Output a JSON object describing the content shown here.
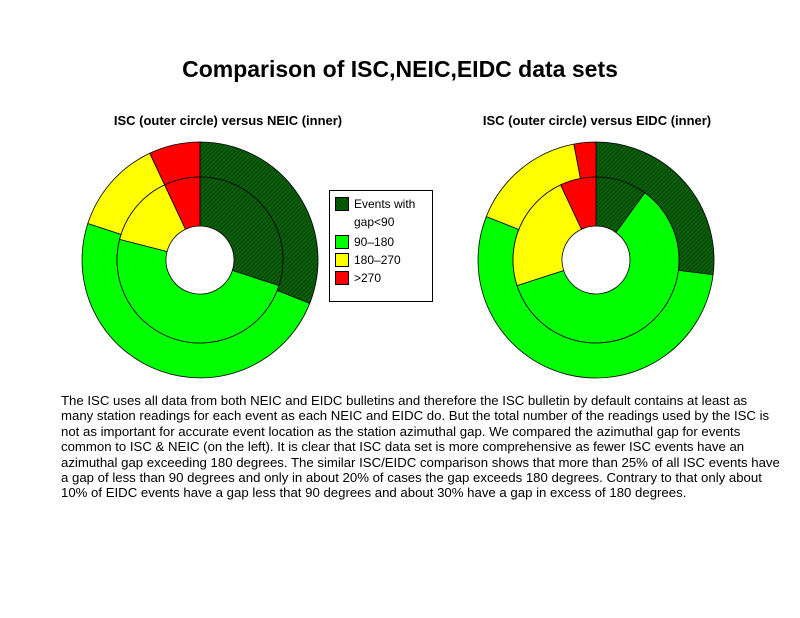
{
  "page": {
    "title": "Comparison of ISC,NEIC,EIDC data sets",
    "body_text": "The ISC uses all data from both NEIC and EIDC bulletins and therefore the ISC bulletin by default contains at least as many station readings for each event as each NEIC and EIDC do. But the total number of the readings used by the ISC is not as important for accurate event location as the station azimuthal gap. We compared the azimuthal gap for events common to ISC & NEIC (on the left).  It is clear that ISC data set is more comprehensive as fewer ISC events have an azimuthal gap exceeding 180 degrees. The similar ISC/EIDC comparison shows that more than 25% of all ISC events have a gap of less than 90 degrees and only in about 20% of cases the gap exceeds 180 degrees. Contrary to that only about 10% of EIDC events have a gap less that 90 degrees and about 30% have a gap in excess of 180 degrees."
  },
  "legend": {
    "items": [
      {
        "label": "Events with gap<90",
        "color": "#006400",
        "hatched": true
      },
      {
        "label": "90–180",
        "color": "#00ff00",
        "hatched": false
      },
      {
        "label": "180–270",
        "color": "#ffff00",
        "hatched": false
      },
      {
        "label": ">270",
        "color": "#ff0000",
        "hatched": false
      }
    ]
  },
  "chart_data": [
    {
      "type": "donut",
      "title": "ISC (outer circle) versus NEIC (inner)",
      "categories": [
        "gap<90",
        "90–180",
        "180–270",
        ">270"
      ],
      "start_angle_deg": 0,
      "direction": "clockwise",
      "series": [
        {
          "name": "ISC",
          "ring": "outer",
          "values": [
            31,
            49,
            13,
            7
          ]
        },
        {
          "name": "NEIC",
          "ring": "inner",
          "values": [
            30,
            49,
            14,
            7
          ]
        }
      ]
    },
    {
      "type": "donut",
      "title": "ISC (outer circle) versus EIDC (inner)",
      "categories": [
        "gap<90",
        "90–180",
        "180–270",
        ">270"
      ],
      "start_angle_deg": 0,
      "direction": "clockwise",
      "series": [
        {
          "name": "ISC",
          "ring": "outer",
          "values": [
            27,
            54,
            16,
            3
          ]
        },
        {
          "name": "EIDC",
          "ring": "inner",
          "values": [
            10,
            60,
            23,
            7
          ]
        }
      ]
    }
  ]
}
